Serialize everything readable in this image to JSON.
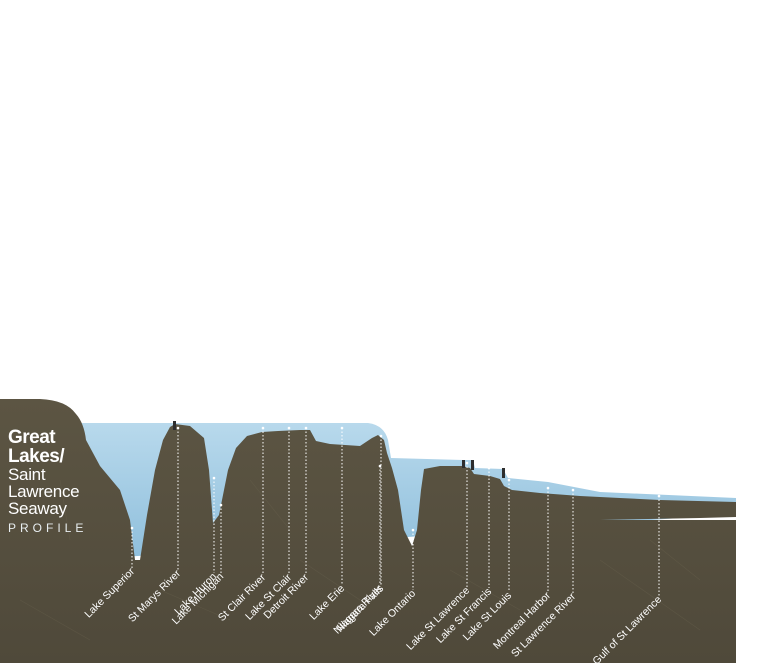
{
  "title": {
    "line1": "Great",
    "line2": "Lakes/",
    "line3": "Saint",
    "line4": "Lawrence",
    "line5": "Seaway",
    "line6": "PROFILE"
  },
  "colors": {
    "rock": "#57503f",
    "rock_light": "#625b48",
    "water": "#a9cfe6",
    "water_edge": "#c9e3f1",
    "label": "#ffffff",
    "lock": "#2e2e2e"
  },
  "features": [
    {
      "name": "Lake Superior"
    },
    {
      "name": "St Marys River"
    },
    {
      "name": "Lake Huron"
    },
    {
      "name": "Lake Michigan"
    },
    {
      "name": "St Clair River"
    },
    {
      "name": "Lake St Clair"
    },
    {
      "name": "Detroit River"
    },
    {
      "name": "Lake Erie"
    },
    {
      "name": "Niagara Falls"
    },
    {
      "name": "Niagara River"
    },
    {
      "name": "Lake Ontario"
    },
    {
      "name": "Lake St Lawrence"
    },
    {
      "name": "Lake St Francis"
    },
    {
      "name": "Lake St Louis"
    },
    {
      "name": "Montreal Harbor"
    },
    {
      "name": "St Lawrence River"
    },
    {
      "name": "Gulf of St Lawrence"
    }
  ]
}
